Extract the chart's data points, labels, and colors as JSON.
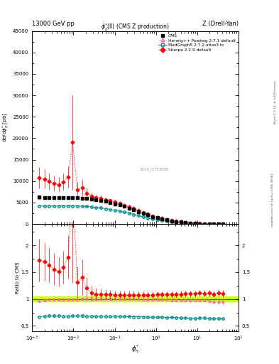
{
  "title_left": "13000 GeV pp",
  "title_right": "Z (Drell-Yan)",
  "plot_title": "$\\dot{\\phi}^{*}_{\\eta}$(ll) (CMS Z production)",
  "ylabel_main": "d$\\sigma$/d$\\phi^{*}_{\\eta}$ [pb]",
  "ylabel_ratio": "Ratio to CMS",
  "xlabel": "$\\phi^{*}_{\\eta}$",
  "watermark": "2019_I1753680",
  "right_label_bottom": "mcplots.cern.ch [arXiv:1306.3436]",
  "right_label_top": "Rivet 3.1.10, ≥ 3.1M events",
  "cms_x": [
    0.00148,
    0.002,
    0.0026,
    0.0034,
    0.0044,
    0.0057,
    0.0074,
    0.0096,
    0.0125,
    0.0162,
    0.0211,
    0.0274,
    0.0356,
    0.0463,
    0.0602,
    0.0782,
    0.1017,
    0.1322,
    0.1719,
    0.2235,
    0.2906,
    0.3778,
    0.4912,
    0.6386,
    0.8302,
    1.0796,
    1.4034,
    1.8245,
    2.3719,
    3.0835,
    4.009,
    5.2117,
    6.7753,
    8.8109,
    11.4542,
    14.8905,
    19.3676,
    25.1879,
    32.7443,
    42.58
  ],
  "cms_y": [
    6270,
    6190,
    6120,
    6100,
    6090,
    6160,
    6180,
    6130,
    6100,
    6030,
    5980,
    5860,
    5680,
    5480,
    5240,
    4990,
    4720,
    4420,
    4080,
    3710,
    3310,
    2890,
    2470,
    2090,
    1740,
    1430,
    1160,
    930,
    730,
    565,
    425,
    305,
    210,
    140,
    90,
    57,
    36,
    22,
    13,
    7.5
  ],
  "cms_color": "#000000",
  "herwig_x": [
    0.00148,
    0.002,
    0.0026,
    0.0034,
    0.0044,
    0.0057,
    0.0074,
    0.0096,
    0.0125,
    0.0162,
    0.0211,
    0.0274,
    0.0356,
    0.0463,
    0.0602,
    0.0782,
    0.1017,
    0.1322,
    0.1719,
    0.2235,
    0.2906,
    0.3778,
    0.4912,
    0.6386,
    0.8302,
    1.0796,
    1.4034,
    1.8245,
    2.3719,
    3.0835,
    4.009,
    5.2117,
    6.7753,
    8.8109,
    11.4542,
    14.8905,
    19.3676,
    25.1879,
    32.7443,
    42.58
  ],
  "herwig_y": [
    6100,
    6100,
    6090,
    6080,
    6100,
    6110,
    6120,
    6100,
    6080,
    6050,
    6000,
    5880,
    5700,
    5500,
    5280,
    5030,
    4760,
    4450,
    4100,
    3720,
    3330,
    2900,
    2470,
    2090,
    1740,
    1430,
    1150,
    920,
    720,
    555,
    415,
    298,
    205,
    137,
    88,
    56,
    35,
    21,
    12.5,
    7.2
  ],
  "herwig_yerr": [
    200,
    200,
    200,
    200,
    200,
    200,
    200,
    200,
    200,
    200,
    200,
    180,
    170,
    160,
    150,
    140,
    130,
    120,
    110,
    100,
    90,
    80,
    70,
    60,
    52,
    43,
    35,
    28,
    22,
    17,
    13,
    9,
    6,
    4,
    3,
    2,
    1.5,
    1,
    0.8,
    0.5
  ],
  "herwig_color": "#ff69b4",
  "madgraph_x": [
    0.00148,
    0.002,
    0.0026,
    0.0034,
    0.0044,
    0.0057,
    0.0074,
    0.0096,
    0.0125,
    0.0162,
    0.0211,
    0.0274,
    0.0356,
    0.0463,
    0.0602,
    0.0782,
    0.1017,
    0.1322,
    0.1719,
    0.2235,
    0.2906,
    0.3778,
    0.4912,
    0.6386,
    0.8302,
    1.0796,
    1.4034,
    1.8245,
    2.3719,
    3.0835,
    4.009,
    5.2117,
    6.7753,
    8.8109,
    11.4542,
    14.8905,
    19.3676,
    25.1879,
    32.7443,
    42.58
  ],
  "madgraph_y": [
    4200,
    4200,
    4200,
    4190,
    4180,
    4200,
    4210,
    4200,
    4180,
    4140,
    4080,
    4000,
    3880,
    3740,
    3570,
    3390,
    3200,
    2990,
    2750,
    2490,
    2220,
    1930,
    1650,
    1390,
    1150,
    950,
    770,
    610,
    480,
    370,
    275,
    197,
    135,
    90,
    58,
    37,
    23,
    14,
    8.3,
    4.8
  ],
  "madgraph_color": "#008b8b",
  "sherpa_x": [
    0.00148,
    0.002,
    0.0026,
    0.0034,
    0.0044,
    0.0057,
    0.0074,
    0.0096,
    0.0125,
    0.0162,
    0.0211,
    0.0274,
    0.0356,
    0.0463,
    0.0602,
    0.0782,
    0.1017,
    0.1322,
    0.1719,
    0.2235,
    0.2906,
    0.3778,
    0.4912,
    0.6386,
    0.8302,
    1.0796,
    1.4034,
    1.8245,
    2.3719,
    3.0835,
    4.009,
    5.2117,
    6.7753,
    8.8109,
    11.4542,
    14.8905,
    19.3676,
    25.1879,
    32.7443,
    42.58
  ],
  "sherpa_y": [
    10800,
    10500,
    10000,
    9500,
    9200,
    9800,
    11000,
    19000,
    8000,
    8500,
    7200,
    6500,
    6200,
    6000,
    5700,
    5400,
    5100,
    4780,
    4400,
    4000,
    3580,
    3120,
    2670,
    2260,
    1880,
    1550,
    1260,
    1010,
    790,
    613,
    463,
    334,
    230,
    154,
    100,
    63,
    40,
    24,
    14.5,
    8.3
  ],
  "sherpa_yerr": [
    2500,
    2200,
    2000,
    1800,
    1700,
    1900,
    2500,
    11000,
    1800,
    2000,
    1200,
    800,
    650,
    560,
    480,
    430,
    380,
    340,
    300,
    260,
    220,
    185,
    155,
    130,
    107,
    87,
    70,
    56,
    43,
    33,
    25,
    18,
    12.5,
    8.5,
    5.5,
    3.5,
    2.2,
    1.4,
    0.9,
    0.5
  ],
  "sherpa_color": "#ff0000",
  "xlim": [
    0.001,
    100
  ],
  "ylim_main": [
    0,
    45000
  ],
  "ylim_ratio": [
    0.4,
    2.4
  ],
  "ratio_band_color": "#c8ff00",
  "ratio_line_color": "#008000",
  "bg_color": "#ffffff"
}
